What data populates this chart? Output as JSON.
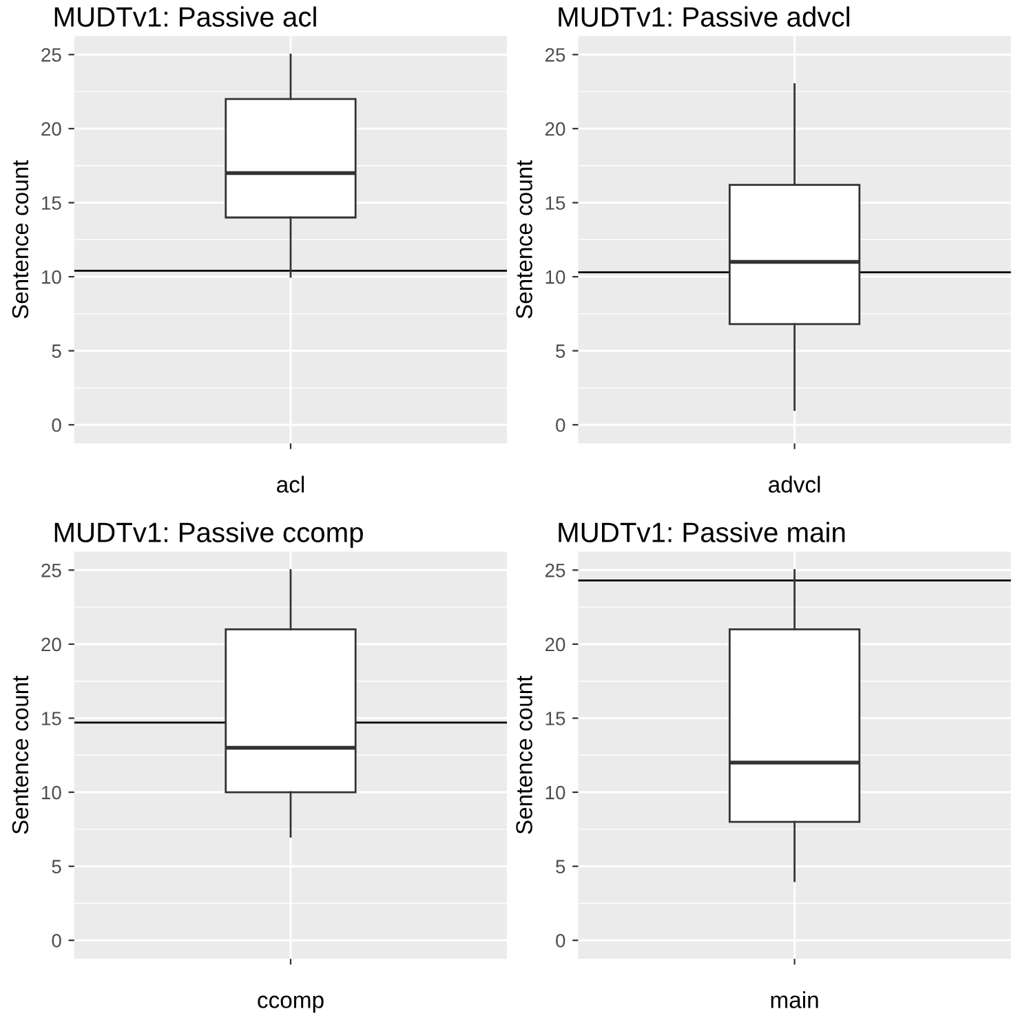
{
  "chart_data": [
    {
      "type": "box",
      "title": "MUDTv1: Passive acl",
      "ylabel": "Sentence count",
      "categories": [
        "acl"
      ],
      "boxes": [
        {
          "low": 10,
          "q1": 14,
          "median": 17,
          "q3": 22,
          "high": 25
        }
      ],
      "ylim": [
        -1.25,
        26.25
      ],
      "yticks": [
        0,
        5,
        10,
        15,
        20,
        25
      ],
      "grid": true,
      "ref_lines": [
        {
          "axis": "y",
          "value": 10.4,
          "color": "#000000"
        }
      ]
    },
    {
      "type": "box",
      "title": "MUDTv1: Passive advcl",
      "ylabel": "Sentence count",
      "categories": [
        "advcl"
      ],
      "boxes": [
        {
          "low": 1,
          "q1": 6.8,
          "median": 11,
          "q3": 16.2,
          "high": 23
        }
      ],
      "ylim": [
        -1.25,
        26.25
      ],
      "yticks": [
        0,
        5,
        10,
        15,
        20,
        25
      ],
      "grid": true,
      "ref_lines": [
        {
          "axis": "y",
          "value": 10.3,
          "color": "#000000"
        }
      ]
    },
    {
      "type": "box",
      "title": "MUDTv1: Passive ccomp",
      "ylabel": "Sentence count",
      "categories": [
        "ccomp"
      ],
      "boxes": [
        {
          "low": 7,
          "q1": 10,
          "median": 13,
          "q3": 21,
          "high": 25
        }
      ],
      "ylim": [
        -1.25,
        26.25
      ],
      "yticks": [
        0,
        5,
        10,
        15,
        20,
        25
      ],
      "grid": true,
      "ref_lines": [
        {
          "axis": "y",
          "value": 14.7,
          "color": "#000000"
        }
      ]
    },
    {
      "type": "box",
      "title": "MUDTv1: Passive main",
      "ylabel": "Sentence count",
      "categories": [
        "main"
      ],
      "boxes": [
        {
          "low": 4,
          "q1": 8,
          "median": 12,
          "q3": 21,
          "high": 25
        }
      ],
      "ylim": [
        -1.25,
        26.25
      ],
      "yticks": [
        0,
        5,
        10,
        15,
        20,
        25
      ],
      "grid": true,
      "ref_lines": [
        {
          "axis": "y",
          "value": 24.3,
          "color": "#000000"
        }
      ]
    }
  ]
}
